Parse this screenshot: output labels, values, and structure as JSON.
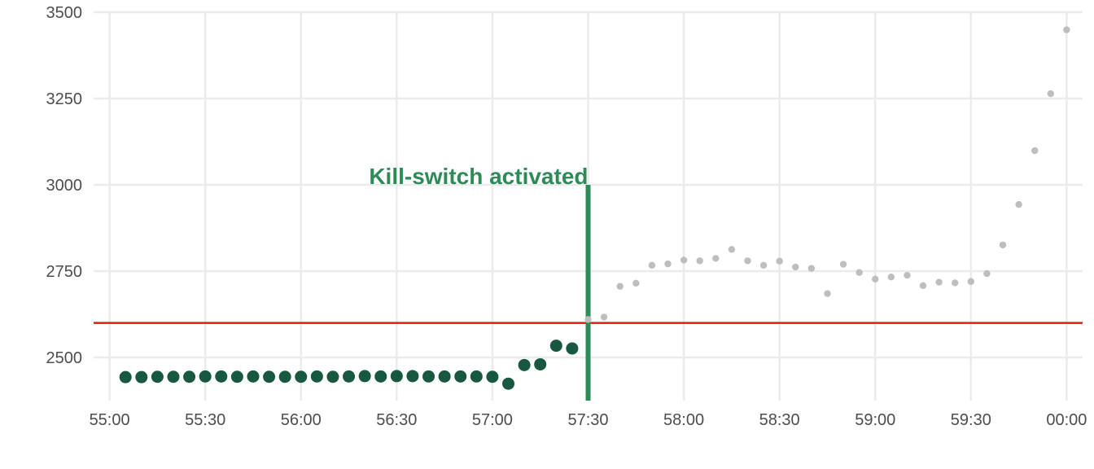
{
  "chart_data": {
    "type": "scatter",
    "title": "",
    "xlabel": "",
    "ylabel": "",
    "x_unit": "mm:ss",
    "xlim": [
      "54:55",
      "00:05"
    ],
    "ylim": [
      2375,
      3500
    ],
    "x_ticks": [
      "55:00",
      "55:30",
      "56:00",
      "56:30",
      "57:00",
      "57:30",
      "58:00",
      "58:30",
      "59:00",
      "59:30",
      "00:00"
    ],
    "y_ticks": [
      2500,
      2750,
      3000,
      3250,
      3500
    ],
    "grid": true,
    "threshold": {
      "y": 2600,
      "color": "#e31a1c"
    },
    "kill_switch": {
      "x": "57:30",
      "y_top": 3000,
      "label": "Kill-switch activated",
      "color": "#2e8b57"
    },
    "series": [
      {
        "color": "#17583f",
        "x": [
          "55:05",
          "55:10",
          "55:15",
          "55:20",
          "55:25",
          "55:30",
          "55:35",
          "55:40",
          "55:45",
          "55:50",
          "55:55",
          "56:00",
          "56:05",
          "56:10",
          "56:15",
          "56:20",
          "56:25",
          "56:30",
          "56:35",
          "56:40",
          "56:45",
          "56:50",
          "56:55",
          "57:00",
          "57:05",
          "57:10",
          "57:15",
          "57:20",
          "57:25"
        ],
        "y": [
          2443,
          2443,
          2444,
          2444,
          2444,
          2445,
          2445,
          2444,
          2445,
          2444,
          2444,
          2444,
          2445,
          2444,
          2445,
          2446,
          2445,
          2446,
          2446,
          2445,
          2445,
          2445,
          2445,
          2444,
          2424,
          2478,
          2480,
          2534,
          2526
        ]
      },
      {
        "color": "#bebebe",
        "x": [
          "57:30",
          "57:35",
          "57:40",
          "57:45",
          "57:50",
          "57:55",
          "58:00",
          "58:05",
          "58:10",
          "58:15",
          "58:20",
          "58:25",
          "58:30",
          "58:35",
          "58:40",
          "58:45",
          "58:50",
          "58:55",
          "59:00",
          "59:05",
          "59:10",
          "59:15",
          "59:20",
          "59:25",
          "59:30",
          "59:35",
          "59:40",
          "59:45",
          "59:50",
          "59:55",
          "00:00"
        ],
        "y": [
          2610,
          2617,
          2706,
          2715,
          2767,
          2771,
          2782,
          2780,
          2787,
          2813,
          2780,
          2767,
          2779,
          2762,
          2758,
          2685,
          2770,
          2746,
          2727,
          2733,
          2738,
          2708,
          2718,
          2716,
          2720,
          2743,
          2826,
          2943,
          3099,
          3264,
          3449
        ]
      }
    ]
  }
}
